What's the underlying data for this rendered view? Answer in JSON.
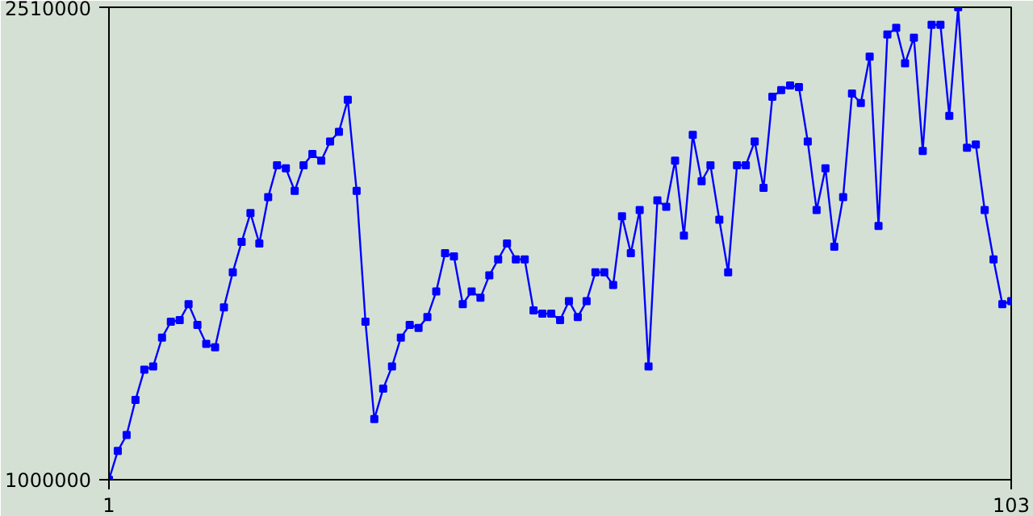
{
  "chart_data": {
    "type": "line",
    "x": [
      1,
      2,
      3,
      4,
      5,
      6,
      7,
      8,
      9,
      10,
      11,
      12,
      13,
      14,
      15,
      16,
      17,
      18,
      19,
      20,
      21,
      22,
      23,
      24,
      25,
      26,
      27,
      28,
      29,
      30,
      31,
      32,
      33,
      34,
      35,
      36,
      37,
      38,
      39,
      40,
      41,
      42,
      43,
      44,
      45,
      46,
      47,
      48,
      49,
      50,
      51,
      52,
      53,
      54,
      55,
      56,
      57,
      58,
      59,
      60,
      61,
      62,
      63,
      64,
      65,
      66,
      67,
      68,
      69,
      70,
      71,
      72,
      73,
      74,
      75,
      76,
      77,
      78,
      79,
      80,
      81,
      82,
      83,
      84,
      85,
      86,
      87,
      88,
      89,
      90,
      91,
      92,
      93,
      94,
      95,
      96,
      97,
      98,
      99,
      100,
      101,
      102,
      103
    ],
    "series": [
      {
        "color": "#0000ff",
        "values": [
          1000000,
          1092000,
          1143000,
          1255000,
          1352000,
          1362000,
          1454000,
          1505000,
          1510000,
          1561000,
          1495000,
          1434000,
          1423000,
          1551000,
          1663000,
          1760000,
          1852000,
          1755000,
          1903000,
          2005000,
          1995000,
          1923000,
          2005000,
          2041000,
          2020000,
          2081000,
          2112000,
          2214000,
          1923000,
          1505000,
          1194000,
          1291000,
          1362000,
          1454000,
          1495000,
          1485000,
          1520000,
          1602000,
          1724000,
          1714000,
          1561000,
          1602000,
          1582000,
          1653000,
          1704000,
          1755000,
          1704000,
          1704000,
          1541000,
          1531000,
          1531000,
          1510000,
          1571000,
          1520000,
          1571000,
          1663000,
          1663000,
          1622000,
          1842000,
          1724000,
          1862000,
          1362000,
          1893000,
          1872000,
          2020000,
          1780000,
          2102000,
          1954000,
          2005000,
          1831000,
          1663000,
          2005000,
          2005000,
          2081000,
          1933000,
          2224000,
          2245000,
          2260000,
          2255000,
          2081000,
          1862000,
          1995000,
          1745000,
          1903000,
          2234000,
          2204000,
          2352000,
          1811000,
          2423000,
          2444000,
          2331000,
          2413000,
          2051000,
          2454000,
          2454000,
          2163000,
          2510000,
          2061000,
          2071000,
          1862000,
          1704000,
          1561000,
          1571000
        ]
      }
    ],
    "xlim": [
      1,
      103
    ],
    "ylim": [
      1000000,
      2510000
    ],
    "xticks": [
      1,
      103
    ],
    "yticks": [
      1000000,
      2510000
    ],
    "marker": "square",
    "line_style": "solid"
  }
}
